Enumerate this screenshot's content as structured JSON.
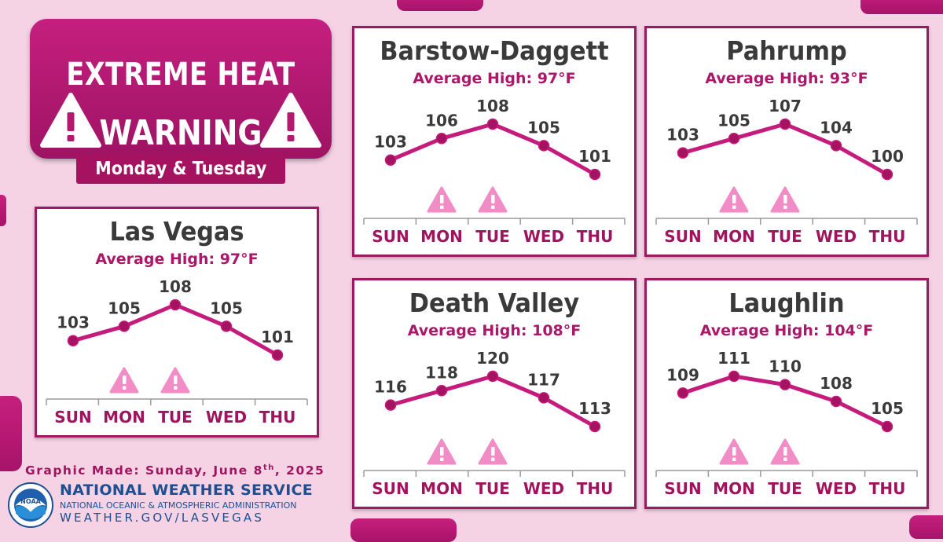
{
  "header": {
    "line1": "EXTREME HEAT",
    "line2": "WARNING",
    "subtitle": "Monday & Tuesday"
  },
  "footer": {
    "made_prefix": "Graphic Made: Sunday, June 8",
    "made_suffix": "th",
    "made_year": ", 2025",
    "org_title": "NATIONAL WEATHER SERVICE",
    "org_sub": "NATIONAL OCEANIC & ATMOSPHERIC ADMINISTRATION",
    "url": "WEATHER.GOV/LASVEGAS",
    "logo_text": "NOAA"
  },
  "colors": {
    "accent": "#c41b7c",
    "dark_accent": "#9b1a62",
    "warning_fill": "#f28cc6",
    "background": "#f5d3e5",
    "nws_blue": "#1d4f91"
  },
  "chart_data": [
    {
      "type": "line",
      "title": "Las Vegas",
      "subtitle": "Average High: 97°F",
      "categories": [
        "SUN",
        "MON",
        "TUE",
        "WED",
        "THU"
      ],
      "values": [
        103,
        105,
        108,
        105,
        101
      ],
      "warning_days": [
        "MON",
        "TUE"
      ],
      "legend": "none",
      "grid": false
    },
    {
      "type": "line",
      "title": "Barstow-Daggett",
      "subtitle": "Average High: 97°F",
      "categories": [
        "SUN",
        "MON",
        "TUE",
        "WED",
        "THU"
      ],
      "values": [
        103,
        106,
        108,
        105,
        101
      ],
      "warning_days": [
        "MON",
        "TUE"
      ],
      "legend": "none",
      "grid": false
    },
    {
      "type": "line",
      "title": "Pahrump",
      "subtitle": "Average High: 93°F",
      "categories": [
        "SUN",
        "MON",
        "TUE",
        "WED",
        "THU"
      ],
      "values": [
        103,
        105,
        107,
        104,
        100
      ],
      "warning_days": [
        "MON",
        "TUE"
      ],
      "legend": "none",
      "grid": false
    },
    {
      "type": "line",
      "title": "Death Valley",
      "subtitle": "Average High: 108°F",
      "categories": [
        "SUN",
        "MON",
        "TUE",
        "WED",
        "THU"
      ],
      "values": [
        116,
        118,
        120,
        117,
        113
      ],
      "warning_days": [
        "MON",
        "TUE"
      ],
      "legend": "none",
      "grid": false
    },
    {
      "type": "line",
      "title": "Laughlin",
      "subtitle": "Average High: 104°F",
      "categories": [
        "SUN",
        "MON",
        "TUE",
        "WED",
        "THU"
      ],
      "values": [
        109,
        111,
        110,
        108,
        105
      ],
      "warning_days": [
        "MON",
        "TUE"
      ],
      "legend": "none",
      "grid": false
    }
  ]
}
